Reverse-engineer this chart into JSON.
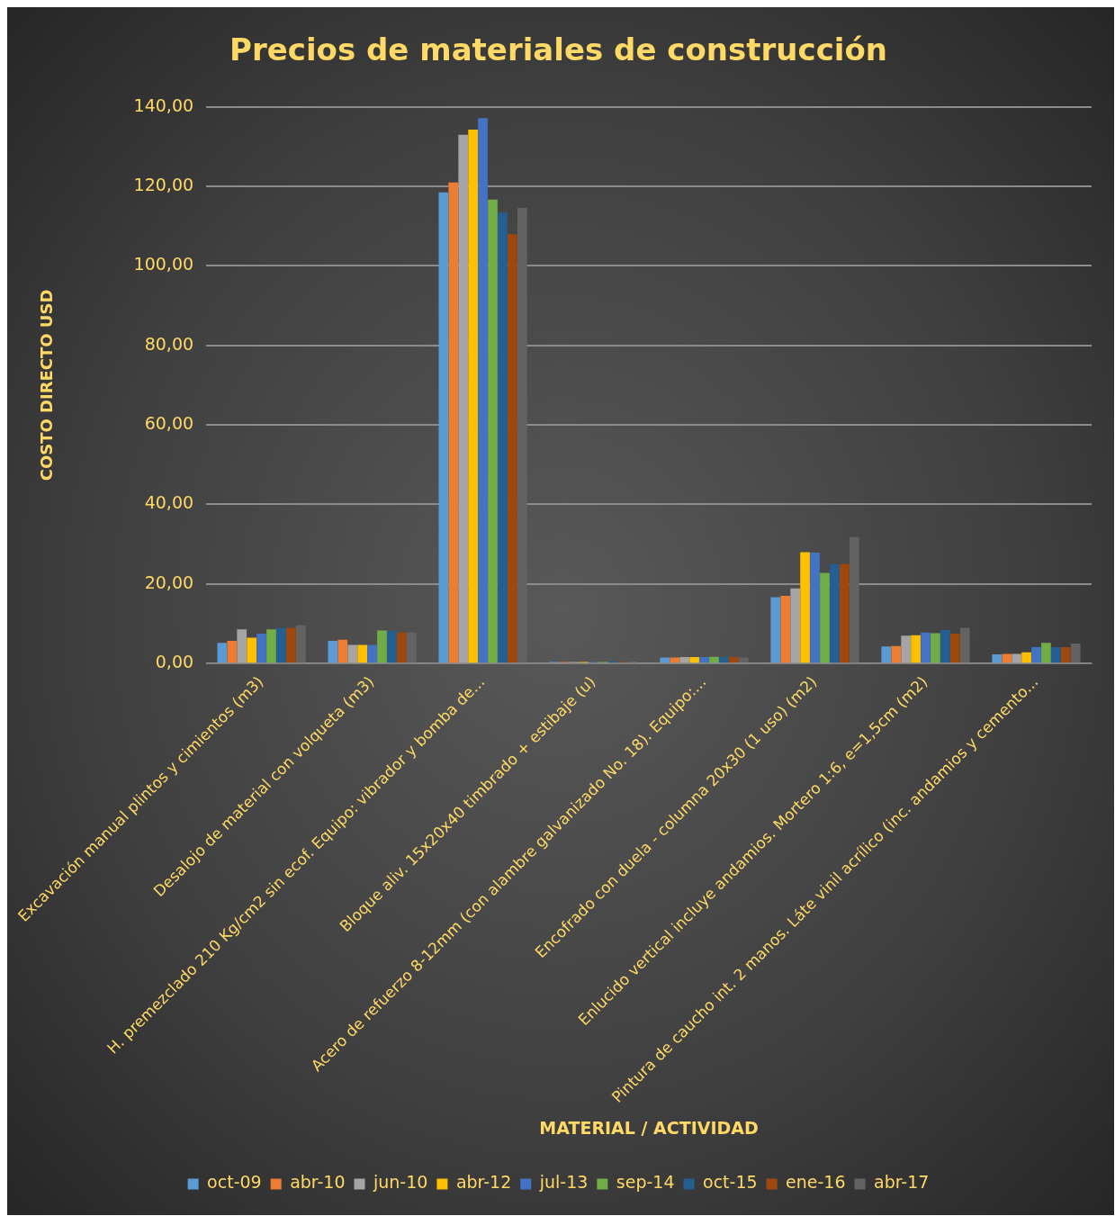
{
  "chart_data": {
    "type": "bar",
    "title": "Precios de materiales de construcción",
    "xlabel": "MATERIAL / ACTIVIDAD",
    "ylabel": "COSTO DIRECTO USD",
    "categories": [
      "Excavación manual plintos y cimientos (m3)",
      "Desalojo de material con volqueta (m3)",
      "H. premezclado 210 Kg/cm2 sin ecof. Equipo: vibrador y bomba de...",
      "Bloque aliv. 15x20x40 timbrado + estibaje (u)",
      "Acero de refuerzo 8-12mm (con alambre galvanizado No. 18). Equipo:...",
      "Encofrado con duela - columna 20x30 (1 uso) (m2)",
      "Enlucido vertical incluye andamios. Mortero 1:6, e=1,5cm (m2)",
      "Pintura de caucho int. 2 manos. Láte vinil acrílico (inc. andamios y cemento..."
    ],
    "series": [
      {
        "name": "oct-09",
        "color": "#5b9bd5",
        "values": [
          5.2,
          5.7,
          118.5,
          0.4,
          1.5,
          16.7,
          4.3,
          2.3
        ]
      },
      {
        "name": "abr-10",
        "color": "#ed7d31",
        "values": [
          5.7,
          6,
          121,
          0.4,
          1.5,
          17,
          4.4,
          2.4
        ]
      },
      {
        "name": "jun-10",
        "color": "#a5a5a5",
        "values": [
          8.6,
          4.7,
          133,
          0.4,
          1.6,
          18.9,
          7,
          2.4
        ]
      },
      {
        "name": "abr-12",
        "color": "#ffc000",
        "values": [
          6.5,
          4.7,
          134.3,
          0.4,
          1.6,
          28,
          7.1,
          2.8
        ]
      },
      {
        "name": "jul-13",
        "color": "#4472c4",
        "values": [
          7.5,
          4.7,
          137.2,
          0.4,
          1.6,
          27.9,
          7.8,
          4.1
        ]
      },
      {
        "name": "sep-14",
        "color": "#70ad47",
        "values": [
          8.6,
          8.3,
          116.7,
          0.4,
          1.7,
          22.8,
          7.6,
          5.2
        ]
      },
      {
        "name": "oct-15",
        "color": "#255e91",
        "values": [
          8.9,
          8.2,
          113.4,
          0.5,
          1.6,
          25,
          8.4,
          4.1
        ]
      },
      {
        "name": "ene-16",
        "color": "#9e480e",
        "values": [
          8.9,
          7.8,
          108,
          0.4,
          1.6,
          25,
          7.5,
          4.1
        ]
      },
      {
        "name": "abr-17",
        "color": "#636363",
        "values": [
          9.6,
          7.8,
          114.6,
          0.5,
          1.5,
          31.8,
          9,
          5
        ]
      }
    ],
    "ylim": [
      0,
      140
    ],
    "yticks": [
      {
        "value": 0,
        "label": "0,00"
      },
      {
        "value": 20,
        "label": "20,00"
      },
      {
        "value": 40,
        "label": "40,00"
      },
      {
        "value": 60,
        "label": "60,00"
      },
      {
        "value": 80,
        "label": "80,00"
      },
      {
        "value": 100,
        "label": "100,00"
      },
      {
        "value": 120,
        "label": "120,00"
      },
      {
        "value": 140,
        "label": "140,00"
      }
    ],
    "grid": "y",
    "legend": "bottom"
  }
}
